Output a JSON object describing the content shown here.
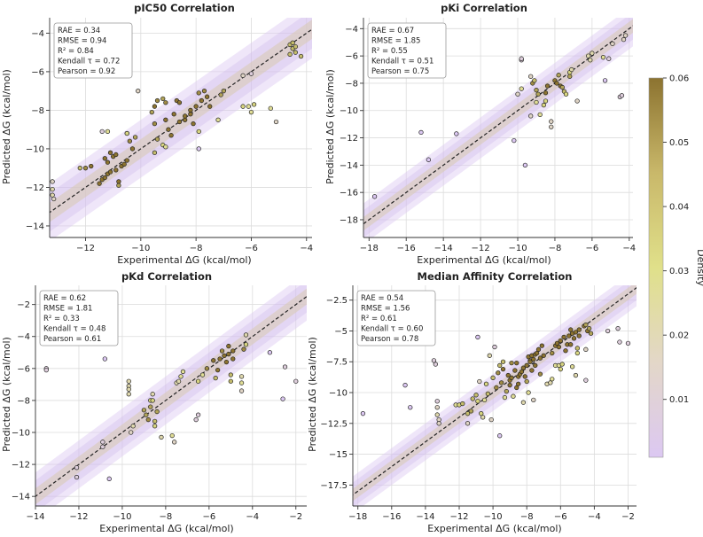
{
  "colorbar": {
    "label": "Density",
    "ticks": [
      "0.01",
      "0.02",
      "0.03",
      "0.04",
      "0.05",
      "0.06"
    ],
    "tick_values": [
      0.01,
      0.02,
      0.03,
      0.04,
      0.05,
      0.06
    ],
    "range": [
      0.001,
      0.06
    ],
    "colors": [
      "#dcc8f2",
      "#e3d7c8",
      "#e0e08a",
      "#c9b86a",
      "#8c7330"
    ]
  },
  "chart_data": [
    {
      "type": "scatter",
      "title": "pIC50 Correlation",
      "xlabel": "Experimental ΔG (kcal/mol)",
      "ylabel": "Predicted ΔG (kcal/mol)",
      "xlim": [
        -13.3,
        -3.8
      ],
      "ylim": [
        -14.6,
        -3.2
      ],
      "xticks": [
        -12,
        -10,
        -8,
        -6,
        -4
      ],
      "yticks": [
        -14,
        -12,
        -10,
        -8,
        -6,
        -4
      ],
      "stats": [
        "RAE = 0.34",
        "RMSE = 0.94",
        "R² = 0.84",
        "Kendall τ = 0.72",
        "Pearson = 0.92"
      ],
      "points": [
        [
          -13.2,
          -11.7
        ],
        [
          -13.2,
          -12.1
        ],
        [
          -13.2,
          -12.4
        ],
        [
          -13.15,
          -12.6
        ],
        [
          -12.2,
          -11
        ],
        [
          -12,
          -11
        ],
        [
          -11.8,
          -10.9
        ],
        [
          -11.3,
          -10.5
        ],
        [
          -11.2,
          -10.7
        ],
        [
          -11.1,
          -10.2
        ],
        [
          -11,
          -10.4
        ],
        [
          -10.9,
          -10.3
        ],
        [
          -11.5,
          -11.8
        ],
        [
          -11.4,
          -11.6
        ],
        [
          -11.3,
          -11.5
        ],
        [
          -11.2,
          -11.3
        ],
        [
          -11.1,
          -11.2
        ],
        [
          -10.9,
          -11.1
        ],
        [
          -10.7,
          -10.9
        ],
        [
          -10.6,
          -10.8
        ],
        [
          -10.5,
          -10.6
        ],
        [
          -11.4,
          -9.1
        ],
        [
          -11.2,
          -9.1
        ],
        [
          -10.5,
          -9.2
        ],
        [
          -10.2,
          -9.4
        ],
        [
          -10.4,
          -9.6
        ],
        [
          -10.3,
          -10
        ],
        [
          -10.8,
          -11.7
        ],
        [
          -10.8,
          -11.9
        ],
        [
          -10.1,
          -7
        ],
        [
          -10.5,
          -9.2
        ],
        [
          -9.6,
          -8.1
        ],
        [
          -9.4,
          -7.5
        ],
        [
          -9.5,
          -7.8
        ],
        [
          -9.5,
          -8.7
        ],
        [
          -9.2,
          -7.4
        ],
        [
          -9.1,
          -7.6
        ],
        [
          -9.1,
          -8.5
        ],
        [
          -9,
          -9
        ],
        [
          -8.9,
          -9.3
        ],
        [
          -9.4,
          -9.5
        ],
        [
          -9.5,
          -10.2
        ],
        [
          -9.2,
          -9.8
        ],
        [
          -9.1,
          -9.9
        ],
        [
          -8.8,
          -8.2
        ],
        [
          -8.7,
          -7.5
        ],
        [
          -8.6,
          -7.6
        ],
        [
          -8.6,
          -8.6
        ],
        [
          -8.4,
          -8.5
        ],
        [
          -8.4,
          -8.3
        ],
        [
          -8.2,
          -8
        ],
        [
          -8.2,
          -8.2
        ],
        [
          -8,
          -7.8
        ],
        [
          -7.9,
          -7.1
        ],
        [
          -7.8,
          -7.5
        ],
        [
          -7.7,
          -7
        ],
        [
          -7.6,
          -7.3
        ],
        [
          -7.5,
          -7.8
        ],
        [
          -8.1,
          -8.7
        ],
        [
          -7.9,
          -9.1
        ],
        [
          -7.9,
          -10
        ],
        [
          -7.1,
          -7.2
        ],
        [
          -7,
          -7
        ],
        [
          -7.2,
          -8.5
        ],
        [
          -6.3,
          -6.2
        ],
        [
          -6,
          -6.1
        ],
        [
          -6.1,
          -7.8
        ],
        [
          -5.9,
          -7.7
        ],
        [
          -6.3,
          -7.8
        ],
        [
          -6,
          -8.1
        ],
        [
          -5.3,
          -7.9
        ],
        [
          -5.1,
          -8.6
        ],
        [
          -4.6,
          -4.6
        ],
        [
          -4.5,
          -4.5
        ],
        [
          -4.5,
          -4.8
        ],
        [
          -4.4,
          -5
        ],
        [
          -4.4,
          -4.7
        ],
        [
          -4.2,
          -5.2
        ],
        [
          -4.6,
          -5.1
        ]
      ]
    },
    {
      "type": "scatter",
      "title": "pKi Correlation",
      "xlabel": "Experimental ΔG (kcal/mol)",
      "ylabel": "Predicted ΔG (kcal/mol)",
      "xlim": [
        -18.3,
        -3.8
      ],
      "ylim": [
        -19.3,
        -3.2
      ],
      "xticks": [
        -18,
        -16,
        -14,
        -12,
        -10,
        -8,
        -6,
        -4
      ],
      "yticks": [
        -18,
        -16,
        -14,
        -12,
        -10,
        -8,
        -6,
        -4
      ],
      "stats": [
        "RAE = 0.67",
        "RMSE = 1.85",
        "R² = 0.55",
        "Kendall τ = 0.51",
        "Pearson = 0.75"
      ],
      "points": [
        [
          -17.7,
          -16.3
        ],
        [
          -15.2,
          -11.6
        ],
        [
          -14.8,
          -13.6
        ],
        [
          -13.3,
          -11.7
        ],
        [
          -10.2,
          -12.2
        ],
        [
          -9.8,
          -6.3
        ],
        [
          -9.8,
          -6.2
        ],
        [
          -10,
          -8.8
        ],
        [
          -9.8,
          -8.4
        ],
        [
          -9.6,
          -14
        ],
        [
          -9.3,
          -10.4
        ],
        [
          -9.3,
          -7.5
        ],
        [
          -9.2,
          -8
        ],
        [
          -9.1,
          -7.8
        ],
        [
          -9,
          -8.5
        ],
        [
          -9,
          -9.4
        ],
        [
          -8.9,
          -8.8
        ],
        [
          -8.8,
          -10.3
        ],
        [
          -8.6,
          -9.6
        ],
        [
          -8.5,
          -9.3
        ],
        [
          -8.5,
          -8.7
        ],
        [
          -8.4,
          -8.2
        ],
        [
          -8.2,
          -10.8
        ],
        [
          -8.2,
          -11.2
        ],
        [
          -8,
          -7.8
        ],
        [
          -7.9,
          -8
        ],
        [
          -7.8,
          -7.4
        ],
        [
          -7.7,
          -8.2
        ],
        [
          -7.6,
          -8.3
        ],
        [
          -7.5,
          -8.6
        ],
        [
          -7.4,
          -8.8
        ],
        [
          -7.2,
          -7.2
        ],
        [
          -7.2,
          -7.5
        ],
        [
          -7.1,
          -7
        ],
        [
          -6.8,
          -9.3
        ],
        [
          -6.2,
          -6
        ],
        [
          -6.1,
          -6.3
        ],
        [
          -6,
          -5.8
        ],
        [
          -5.4,
          -6.1
        ],
        [
          -5.3,
          -7.8
        ],
        [
          -5.1,
          -6.2
        ],
        [
          -4.9,
          -5.1
        ],
        [
          -4.5,
          -9
        ],
        [
          -4.4,
          -8.9
        ],
        [
          -4.3,
          -4.8
        ],
        [
          -4.2,
          -4.5
        ]
      ]
    },
    {
      "type": "scatter",
      "title": "pKd Correlation",
      "xlabel": "Experimental ΔG (kcal/mol)",
      "ylabel": "Predicted ΔG (kcal/mol)",
      "xlim": [
        -14,
        -1.5
      ],
      "ylim": [
        -14.6,
        -0.8
      ],
      "xticks": [
        -14,
        -12,
        -10,
        -8,
        -6,
        -4,
        -2
      ],
      "yticks": [
        -14,
        -12,
        -10,
        -8,
        -6,
        -4,
        -2
      ],
      "stats": [
        "RAE = 0.62",
        "RMSE = 1.81",
        "R² = 0.33",
        "Kendall τ = 0.48",
        "Pearson = 0.61"
      ],
      "points": [
        [
          -13.5,
          -6
        ],
        [
          -13.5,
          -6.1
        ],
        [
          -12.1,
          -12.2
        ],
        [
          -12.1,
          -12.8
        ],
        [
          -10.9,
          -10.9
        ],
        [
          -10.9,
          -10.6
        ],
        [
          -10.8,
          -5.4
        ],
        [
          -10.6,
          -12.9
        ],
        [
          -9.7,
          -6.8
        ],
        [
          -9.7,
          -7.1
        ],
        [
          -9.7,
          -7.3
        ],
        [
          -9.7,
          -7.6
        ],
        [
          -9.6,
          -10
        ],
        [
          -9.5,
          -9.6
        ],
        [
          -9,
          -8.6
        ],
        [
          -8.9,
          -8.9
        ],
        [
          -8.8,
          -9.2
        ],
        [
          -8.7,
          -8.4
        ],
        [
          -8.7,
          -8
        ],
        [
          -8.6,
          -8
        ],
        [
          -8.6,
          -7.6
        ],
        [
          -8.5,
          -9.3
        ],
        [
          -8.5,
          -9.6
        ],
        [
          -8.4,
          -8.7
        ],
        [
          -8.2,
          -10.3
        ],
        [
          -7.7,
          -10.2
        ],
        [
          -7.6,
          -10.6
        ],
        [
          -7.5,
          -6.9
        ],
        [
          -7.4,
          -6.8
        ],
        [
          -7.3,
          -6.5
        ],
        [
          -7.2,
          -6.2
        ],
        [
          -6.6,
          -9.2
        ],
        [
          -6.5,
          -8.9
        ],
        [
          -6.5,
          -6.8
        ],
        [
          -6.3,
          -6.4
        ],
        [
          -6.1,
          -6
        ],
        [
          -5.8,
          -5.5
        ],
        [
          -5.7,
          -6.6
        ],
        [
          -5.6,
          -6.1
        ],
        [
          -5.5,
          -5.4
        ],
        [
          -5.4,
          -4.9
        ],
        [
          -5.3,
          -5.2
        ],
        [
          -5.2,
          -5.6
        ],
        [
          -5.1,
          -5.1
        ],
        [
          -5.1,
          -4.6
        ],
        [
          -5,
          -6.4
        ],
        [
          -5,
          -6.8
        ],
        [
          -4.9,
          -4.9
        ],
        [
          -4.9,
          -5.4
        ],
        [
          -4.5,
          -6.5
        ],
        [
          -4.5,
          -6.9
        ],
        [
          -4.5,
          -7.4
        ],
        [
          -4.4,
          -4.8
        ],
        [
          -4.3,
          -4.5
        ],
        [
          -4.3,
          -3.9
        ],
        [
          -3.2,
          -5
        ],
        [
          -2.6,
          -7.9
        ],
        [
          -2.5,
          -5.9
        ],
        [
          -2,
          -6.8
        ]
      ]
    },
    {
      "type": "scatter",
      "title": "Median Affinity Correlation",
      "xlabel": "Experimental ΔG (kcal/mol)",
      "ylabel": "Predicted ΔG (kcal/mol)",
      "xlim": [
        -18.3,
        -1.5
      ],
      "ylim": [
        -19.2,
        -1.3
      ],
      "xticks": [
        -18,
        -16,
        -14,
        -12,
        -10,
        -8,
        -6,
        -4,
        -2
      ],
      "yticks": [
        -17.5,
        -15,
        -12.5,
        -10,
        -7.5,
        -5,
        -2.5
      ],
      "stats": [
        "RAE = 0.54",
        "RMSE = 1.56",
        "R² = 0.61",
        "Kendall τ = 0.60",
        "Pearson = 0.78"
      ],
      "points": [
        [
          -17.7,
          -11.7
        ],
        [
          -15.2,
          -9.4
        ],
        [
          -14.9,
          -11.2
        ],
        [
          -13.5,
          -7.4
        ],
        [
          -13.4,
          -7.7
        ],
        [
          -13.3,
          -10.7
        ],
        [
          -13.3,
          -11.2
        ],
        [
          -13.3,
          -11.8
        ],
        [
          -13.2,
          -12.2
        ],
        [
          -13.2,
          -12.5
        ],
        [
          -12.2,
          -11
        ],
        [
          -12,
          -11
        ],
        [
          -11.8,
          -10.9
        ],
        [
          -11.5,
          -11.7
        ],
        [
          -11.5,
          -12.5
        ],
        [
          -11.3,
          -11.5
        ],
        [
          -11.2,
          -10.5
        ],
        [
          -11,
          -10.2
        ],
        [
          -10.9,
          -5.5
        ],
        [
          -10.9,
          -10.7
        ],
        [
          -10.8,
          -9.1
        ],
        [
          -10.7,
          -11.7
        ],
        [
          -10.6,
          -12
        ],
        [
          -10.5,
          -10.6
        ],
        [
          -10.4,
          -9.3
        ],
        [
          -10.3,
          -10.1
        ],
        [
          -10.2,
          -7
        ],
        [
          -10.1,
          -12.2
        ],
        [
          -10,
          -8.8
        ],
        [
          -9.9,
          -6.3
        ],
        [
          -9.8,
          -9.6
        ],
        [
          -9.7,
          -8.4
        ],
        [
          -9.6,
          -7.8
        ],
        [
          -9.6,
          -13.5
        ],
        [
          -9.5,
          -9.2
        ],
        [
          -9.4,
          -8.1
        ],
        [
          -9.4,
          -7.5
        ],
        [
          -9.3,
          -10.4
        ],
        [
          -9.2,
          -9.9
        ],
        [
          -9.1,
          -8.6
        ],
        [
          -9,
          -9
        ],
        [
          -9,
          -9.4
        ],
        [
          -8.9,
          -8.8
        ],
        [
          -8.9,
          -7.6
        ],
        [
          -8.8,
          -10.3
        ],
        [
          -8.7,
          -8.2
        ],
        [
          -8.6,
          -9.6
        ],
        [
          -8.6,
          -7.6
        ],
        [
          -8.5,
          -8.7
        ],
        [
          -8.5,
          -9.3
        ],
        [
          -8.4,
          -8.5
        ],
        [
          -8.3,
          -8.3
        ],
        [
          -8.2,
          -10.8
        ],
        [
          -8.2,
          -8
        ],
        [
          -8.1,
          -8.7
        ],
        [
          -8,
          -7.8
        ],
        [
          -8,
          -9.1
        ],
        [
          -7.9,
          -7.1
        ],
        [
          -7.9,
          -10
        ],
        [
          -7.8,
          -7.4
        ],
        [
          -7.8,
          -7.5
        ],
        [
          -7.7,
          -7
        ],
        [
          -7.7,
          -8.2
        ],
        [
          -7.6,
          -7.3
        ],
        [
          -7.6,
          -10.6
        ],
        [
          -7.5,
          -6.9
        ],
        [
          -7.5,
          -7.8
        ],
        [
          -7.4,
          -6.8
        ],
        [
          -7.3,
          -6.5
        ],
        [
          -7.2,
          -7.2
        ],
        [
          -7.2,
          -8.5
        ],
        [
          -7.1,
          -6.2
        ],
        [
          -7,
          -7
        ],
        [
          -6.8,
          -9.3
        ],
        [
          -6.6,
          -9.2
        ],
        [
          -6.5,
          -8.9
        ],
        [
          -6.5,
          -6.8
        ],
        [
          -6.3,
          -6.2
        ],
        [
          -6.3,
          -7.8
        ],
        [
          -6.2,
          -6
        ],
        [
          -6.1,
          -6.3
        ],
        [
          -6.1,
          -7.8
        ],
        [
          -6,
          -5.8
        ],
        [
          -6,
          -8.1
        ],
        [
          -5.9,
          -7.7
        ],
        [
          -5.8,
          -5.5
        ],
        [
          -5.7,
          -6.6
        ],
        [
          -5.6,
          -6.1
        ],
        [
          -5.5,
          -5.4
        ],
        [
          -5.4,
          -4.9
        ],
        [
          -5.4,
          -6.1
        ],
        [
          -5.3,
          -5.2
        ],
        [
          -5.3,
          -7.9
        ],
        [
          -5.2,
          -5.6
        ],
        [
          -5.1,
          -5.1
        ],
        [
          -5.1,
          -8.6
        ],
        [
          -5,
          -6.4
        ],
        [
          -5,
          -6.8
        ],
        [
          -4.9,
          -4.9
        ],
        [
          -4.9,
          -5.4
        ],
        [
          -4.6,
          -4.6
        ],
        [
          -4.5,
          -4.5
        ],
        [
          -4.5,
          -6.5
        ],
        [
          -4.5,
          -9
        ],
        [
          -4.4,
          -5
        ],
        [
          -4.3,
          -4.8
        ],
        [
          -4.2,
          -5.2
        ],
        [
          -3.2,
          -5
        ],
        [
          -2.6,
          -4.8
        ],
        [
          -2.5,
          -5.9
        ],
        [
          -2,
          -6
        ]
      ]
    }
  ]
}
